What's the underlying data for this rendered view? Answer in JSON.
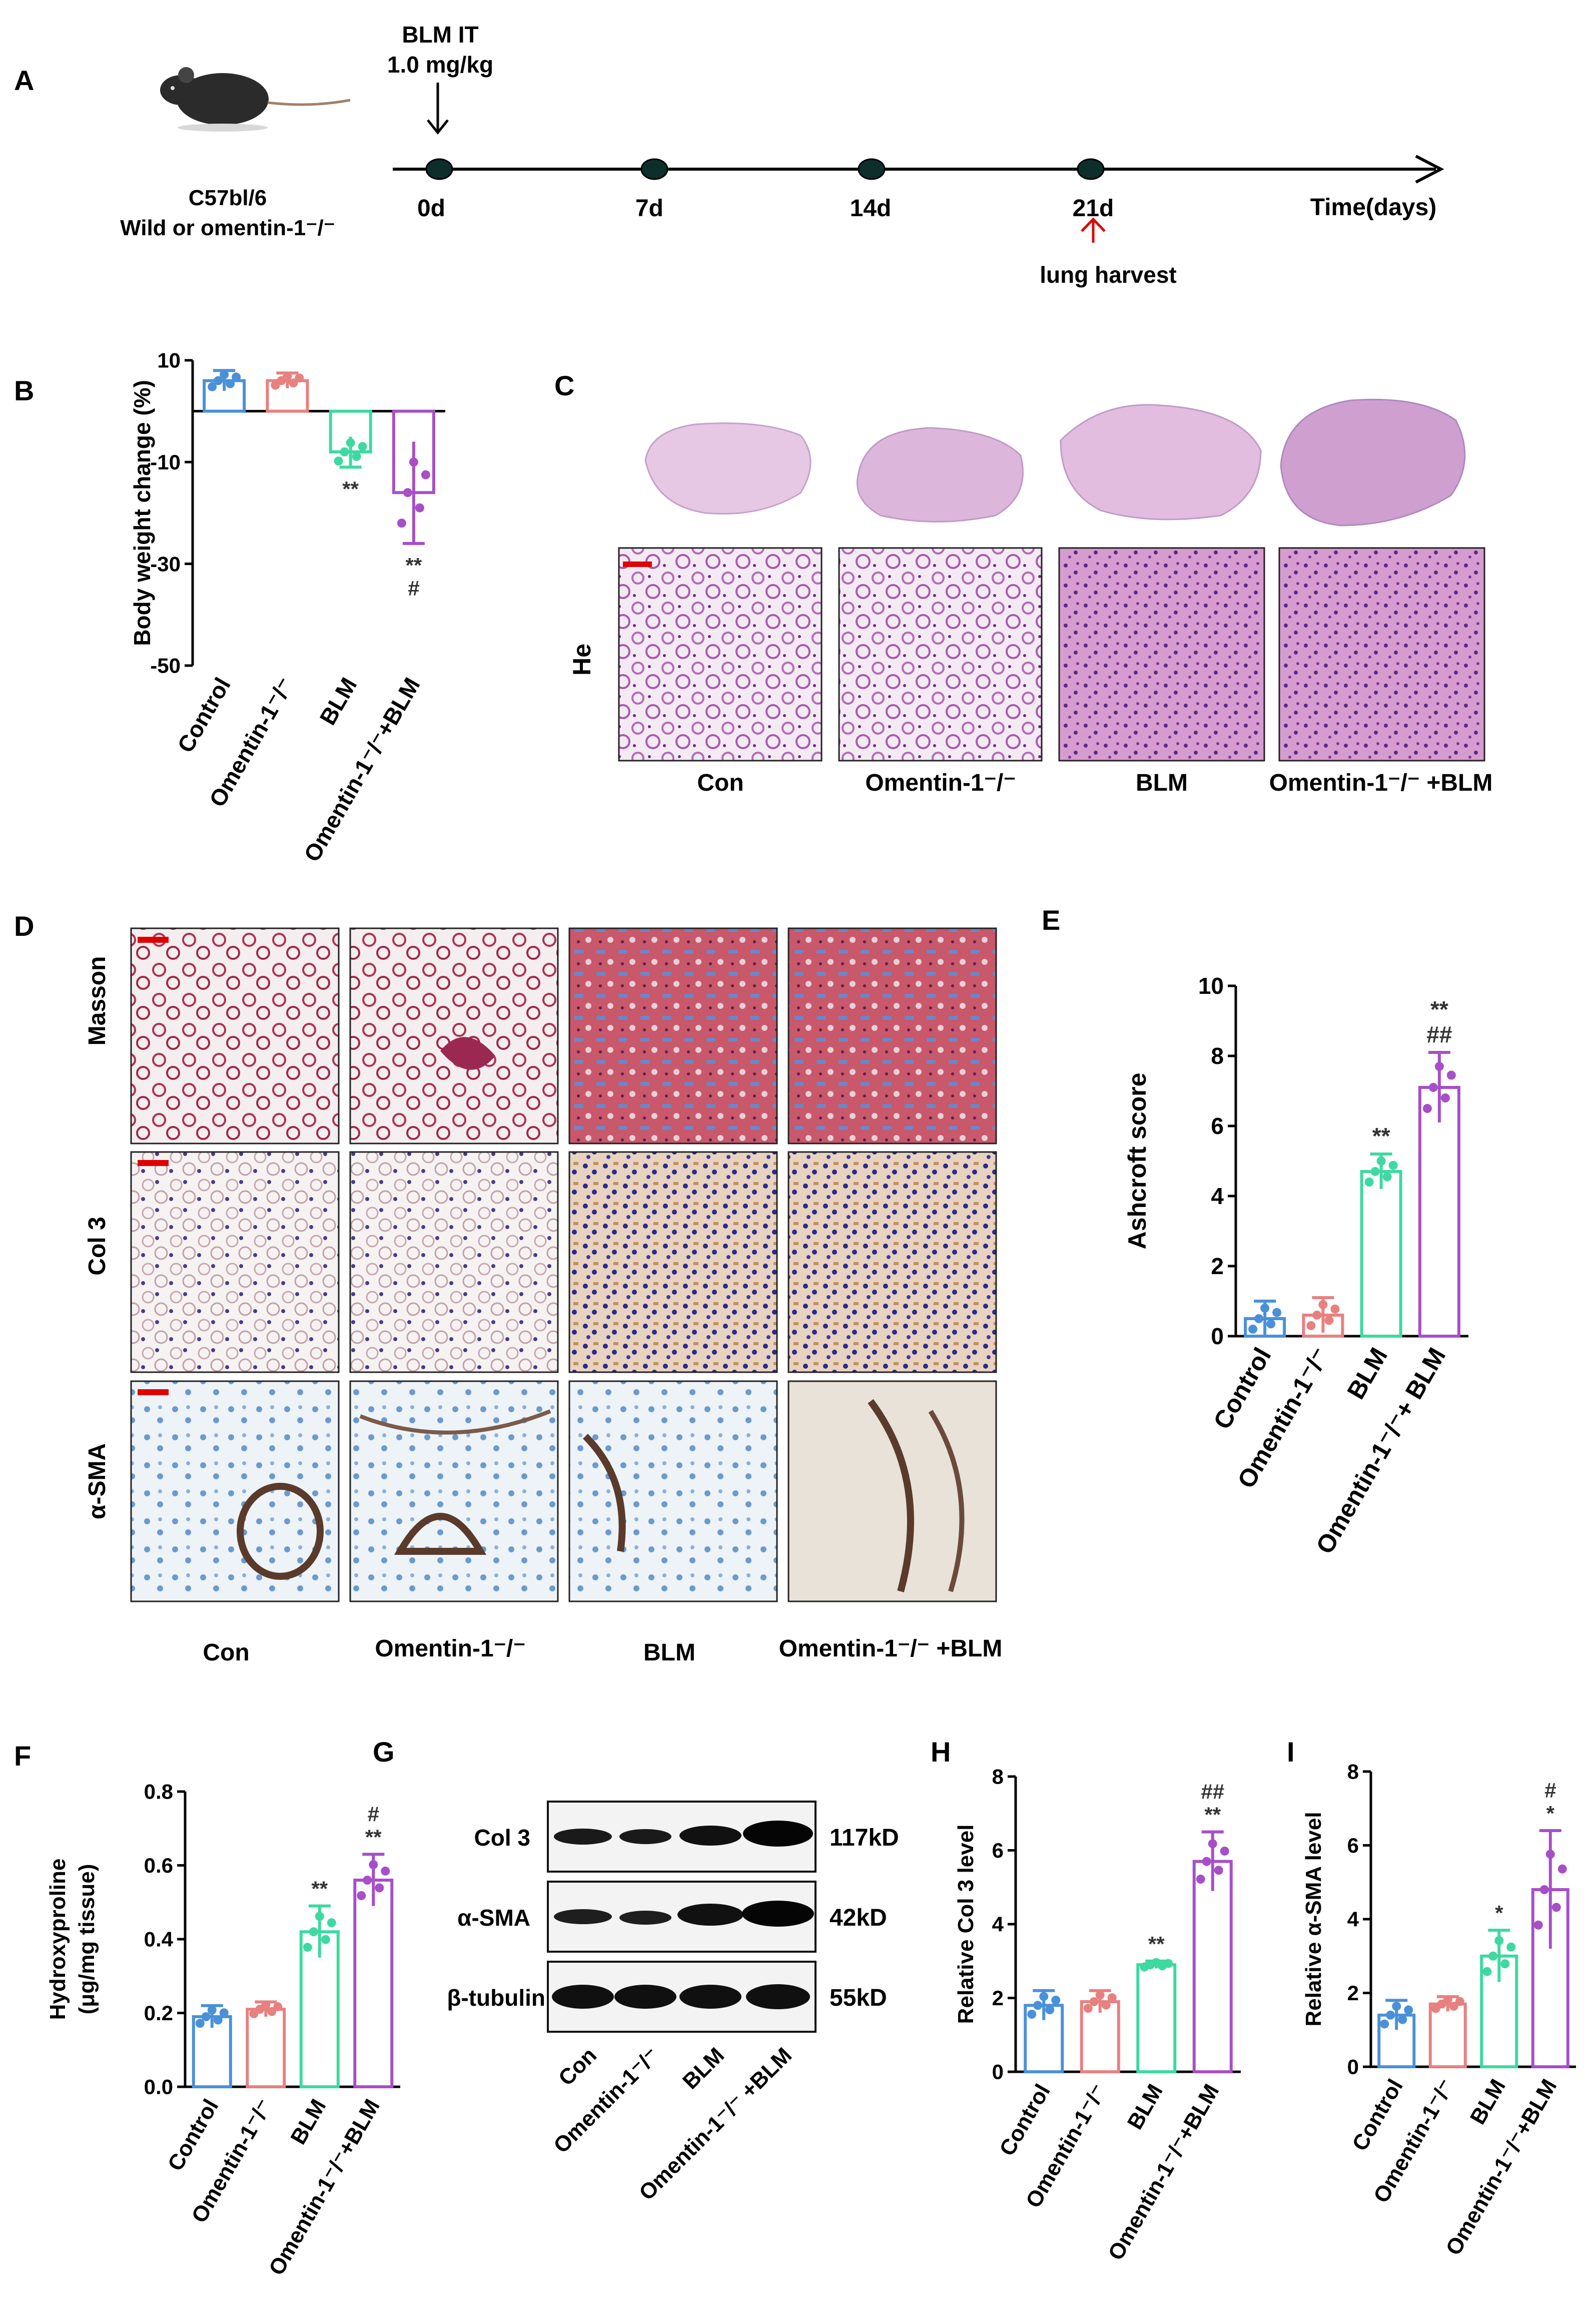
{
  "panel_letters": {
    "A": "A",
    "B": "B",
    "C": "C",
    "D": "D",
    "E": "E",
    "F": "F",
    "G": "G",
    "H": "H",
    "I": "I"
  },
  "timeline": {
    "strain": "C57bl/6",
    "genotype": "Wild or omentin-1⁻/⁻",
    "treatment": "BLM IT",
    "dose": "1.0 mg/kg",
    "days": [
      "0d",
      "7d",
      "14d",
      "21d"
    ],
    "axis_label": "Time(days)",
    "harvest": "lung harvest"
  },
  "colors": {
    "control": "#4a90d9",
    "omentin": "#e88080",
    "blm": "#3dd9a0",
    "combo": "#a64fc8"
  },
  "groups": [
    "Control",
    "Omentin-1⁻/⁻",
    "BLM",
    "Omentin-1⁻/⁻+BLM"
  ],
  "short_groups": [
    "Con",
    "Omentin-1⁻/⁻",
    "BLM",
    "Omentin-1⁻/⁻ +BLM"
  ],
  "stain_labels": {
    "he": "He",
    "masson": "Masson",
    "col3": "Col 3",
    "asma": "α-SMA"
  },
  "western": {
    "rows": [
      {
        "label": "Col 3",
        "kd": "117kD"
      },
      {
        "label": "α-SMA",
        "kd": "42kD"
      },
      {
        "label": "β-tubulin",
        "kd": "55kD"
      }
    ]
  },
  "chart_data": [
    {
      "panel": "B",
      "type": "bar",
      "title": "",
      "ylabel": "Body weight change (%)",
      "ylim": [
        -50,
        10
      ],
      "yticks": [
        10,
        -10,
        -30,
        -50
      ],
      "categories": [
        "Control",
        "Omentin-1⁻/⁻",
        "BLM",
        "Omentin-1⁻/⁻+BLM"
      ],
      "values": [
        6,
        6,
        -8,
        -16
      ],
      "errors": [
        2,
        1.5,
        3,
        10
      ],
      "annotations": [
        "",
        "",
        "**",
        "**\n#"
      ]
    },
    {
      "panel": "E",
      "type": "bar",
      "title": "",
      "ylabel": "Ashcroft score",
      "ylim": [
        0,
        10
      ],
      "yticks": [
        0,
        2,
        4,
        6,
        8,
        10
      ],
      "categories": [
        "Control",
        "Omentin-1⁻/⁻",
        "BLM",
        "Omentin-1⁻/⁻+ BLM"
      ],
      "values": [
        0.5,
        0.6,
        4.7,
        7.1
      ],
      "errors": [
        0.5,
        0.5,
        0.5,
        1.0
      ],
      "annotations": [
        "",
        "",
        "**",
        "**\n##"
      ]
    },
    {
      "panel": "F",
      "type": "bar",
      "title": "",
      "ylabel": "Hydroxyproline (μg/mg tissue)",
      "ylim": [
        0,
        0.8
      ],
      "yticks": [
        0.0,
        0.2,
        0.4,
        0.6,
        0.8
      ],
      "categories": [
        "Control",
        "Omentin-1⁻/⁻",
        "BLM",
        "Omentin-1⁻/⁻+BLM"
      ],
      "values": [
        0.19,
        0.21,
        0.42,
        0.56
      ],
      "errors": [
        0.03,
        0.02,
        0.07,
        0.07
      ],
      "annotations": [
        "",
        "",
        "**",
        "#\n**"
      ]
    },
    {
      "panel": "H",
      "type": "bar",
      "title": "",
      "ylabel": "Relative Col 3 level",
      "ylim": [
        0,
        8
      ],
      "yticks": [
        0,
        2,
        4,
        6,
        8
      ],
      "categories": [
        "Control",
        "Omentin-1⁻/⁻",
        "BLM",
        "Omentin-1⁻/⁻+BLM"
      ],
      "values": [
        1.8,
        1.9,
        2.9,
        5.7
      ],
      "errors": [
        0.4,
        0.3,
        0.1,
        0.8
      ],
      "annotations": [
        "",
        "",
        "**",
        "##\n**"
      ]
    },
    {
      "panel": "I",
      "type": "bar",
      "title": "",
      "ylabel": "Relative α-SMA level",
      "ylim": [
        0,
        8
      ],
      "yticks": [
        0,
        2,
        4,
        6,
        8
      ],
      "categories": [
        "Control",
        "Omentin-1⁻/⁻",
        "BLM",
        "Omentin-1⁻/⁻+BLM"
      ],
      "values": [
        1.4,
        1.7,
        3.0,
        4.8
      ],
      "errors": [
        0.4,
        0.2,
        0.7,
        1.6
      ],
      "annotations": [
        "",
        "",
        "*",
        "#\n*"
      ]
    }
  ]
}
